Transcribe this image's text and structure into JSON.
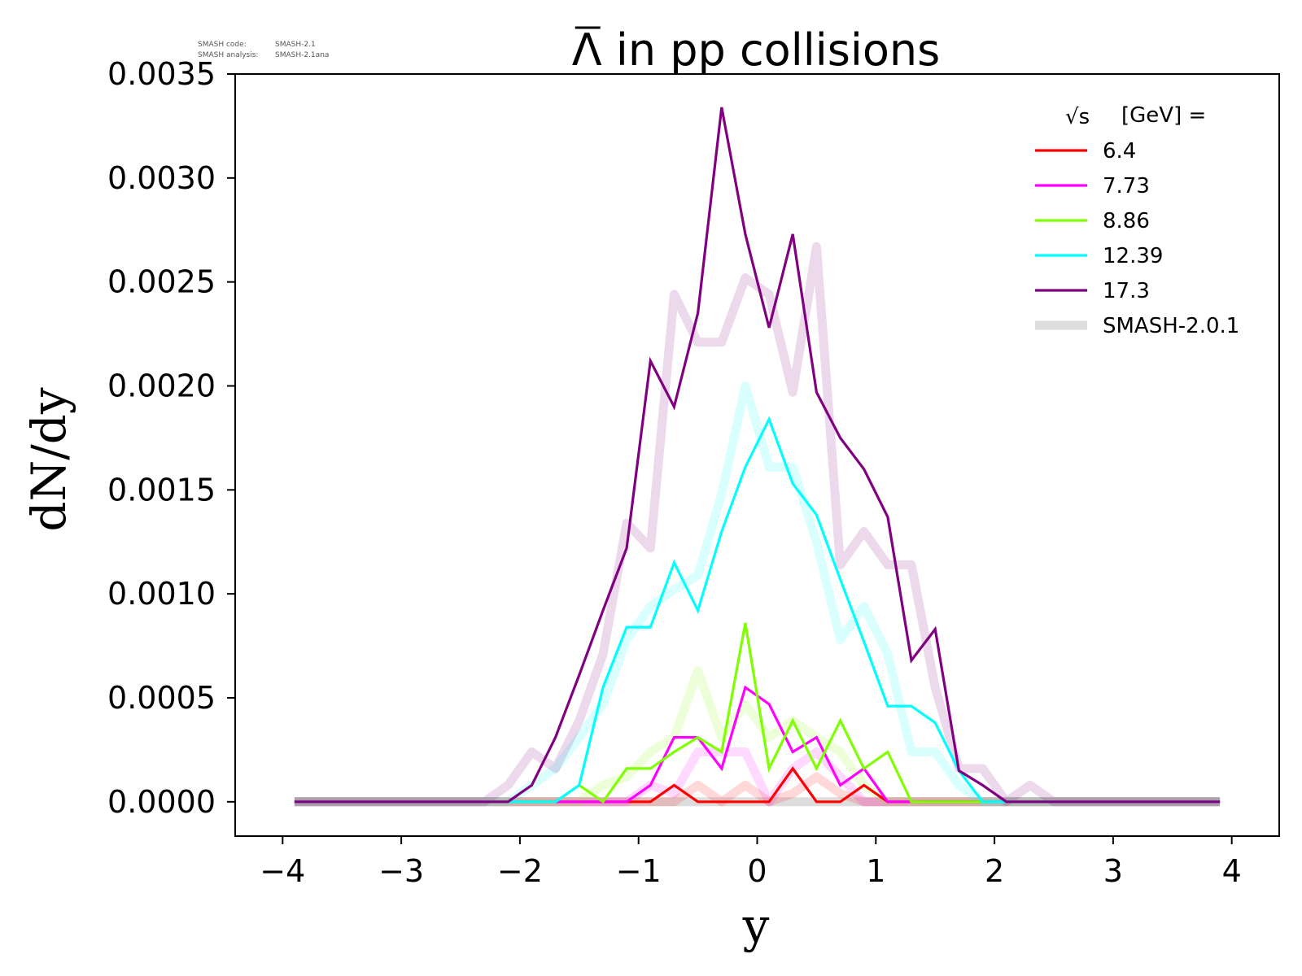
{
  "meta": {
    "code_label": "SMASH code:",
    "code_value": "SMASH-2.1",
    "analysis_label": "SMASH analysis:",
    "analysis_value": "SMASH-2.1ana"
  },
  "chart_data": {
    "type": "line",
    "title": "Λ in pp collisions",
    "title_overbar_char": "Λ",
    "xlabel": "y",
    "ylabel": "dN/dy",
    "xlim": [
      -4.4,
      4.4
    ],
    "ylim": [
      -0.000165,
      0.0035
    ],
    "xticks": [
      -4,
      -3,
      -2,
      -1,
      0,
      1,
      2,
      3,
      4
    ],
    "xtick_labels": [
      "−4",
      "−3",
      "−2",
      "−1",
      "0",
      "1",
      "2",
      "3",
      "4"
    ],
    "yticks": [
      0,
      0.0005,
      0.001,
      0.0015,
      0.002,
      0.0025,
      0.003,
      0.0035
    ],
    "ytick_labels": [
      "0.0000",
      "0.0005",
      "0.0010",
      "0.0015",
      "0.0020",
      "0.0025",
      "0.0030",
      "0.0035"
    ],
    "grid": false,
    "legend": {
      "placement": "top-right",
      "title_prefix": "√s",
      "title_suffix": "[GeV] ="
    },
    "x": [
      -3.9,
      -3.7,
      -3.5,
      -3.3,
      -3.1,
      -2.9,
      -2.7,
      -2.5,
      -2.3,
      -2.1,
      -1.9,
      -1.7,
      -1.5,
      -1.3,
      -1.1,
      -0.9,
      -0.7,
      -0.5,
      -0.3,
      -0.1,
      0.1,
      0.3,
      0.5,
      0.7,
      0.9,
      1.1,
      1.3,
      1.5,
      1.7,
      1.9,
      2.1,
      2.3,
      2.5,
      2.7,
      2.9,
      3.1,
      3.3,
      3.5,
      3.7,
      3.9
    ],
    "series": [
      {
        "name": "6.4",
        "color": "#ff0000",
        "values": [
          0,
          0,
          0,
          0,
          0,
          0,
          0,
          0,
          0,
          0,
          0,
          0,
          0,
          0,
          0,
          0,
          8e-05,
          0,
          0,
          0,
          0,
          0.00016,
          0,
          0,
          8e-05,
          0,
          0,
          0,
          0,
          0,
          0,
          0,
          0,
          0,
          0,
          0,
          0,
          0,
          0,
          0
        ],
        "reference": [
          0,
          0,
          0,
          0,
          0,
          0,
          0,
          0,
          0,
          0,
          0,
          0,
          0,
          0,
          0,
          0,
          0,
          8e-05,
          0,
          8e-05,
          0,
          4e-05,
          0.00012,
          4e-05,
          0,
          0,
          0,
          0,
          0,
          0,
          0,
          0,
          0,
          0,
          0,
          0,
          0,
          0,
          0,
          0
        ]
      },
      {
        "name": "7.73",
        "color": "#ff00ff",
        "values": [
          0,
          0,
          0,
          0,
          0,
          0,
          0,
          0,
          0,
          0,
          0,
          0,
          0,
          0,
          0,
          8e-05,
          0.00031,
          0.00031,
          0.00016,
          0.00055,
          0.00047,
          0.00024,
          0.00031,
          8e-05,
          0.00016,
          0,
          0,
          0,
          0,
          0,
          0,
          0,
          0,
          0,
          0,
          0,
          0,
          0,
          0,
          0
        ],
        "reference": [
          0,
          0,
          0,
          0,
          0,
          0,
          0,
          0,
          0,
          0,
          0,
          0,
          0,
          0,
          0,
          8e-05,
          4e-05,
          0.00024,
          0.00024,
          0.00024,
          0,
          0.00016,
          0.00024,
          0.00012,
          0,
          0,
          0,
          0,
          0,
          0,
          0,
          0,
          0,
          0,
          0,
          0,
          0,
          0,
          0,
          0
        ]
      },
      {
        "name": "8.86",
        "color": "#7fff00",
        "values": [
          0,
          0,
          0,
          0,
          0,
          0,
          0,
          0,
          0,
          0,
          0,
          0,
          8e-05,
          0,
          0.00016,
          0.00016,
          0.00024,
          0.00031,
          0.00024,
          0.00086,
          0.00016,
          0.00039,
          0.00016,
          0.00039,
          0.00016,
          0.00024,
          0,
          0,
          0,
          0,
          0,
          0,
          0,
          0,
          0,
          0,
          0,
          0,
          0,
          0
        ],
        "reference": [
          0,
          0,
          0,
          0,
          0,
          0,
          0,
          0,
          0,
          0,
          0,
          0,
          0,
          8e-05,
          0.00012,
          0.00024,
          0.00031,
          0.00063,
          0.00031,
          0.00047,
          0.00031,
          0.00039,
          0.00031,
          0.00024,
          8e-05,
          0,
          0,
          0,
          0,
          0,
          0,
          0,
          0,
          0,
          0,
          0,
          0,
          0,
          0,
          0
        ]
      },
      {
        "name": "12.39",
        "color": "#00ffff",
        "values": [
          0,
          0,
          0,
          0,
          0,
          0,
          0,
          0,
          0,
          0,
          0,
          0,
          8e-05,
          0.00055,
          0.00084,
          0.00084,
          0.00115,
          0.00092,
          0.0013,
          0.00161,
          0.00184,
          0.00153,
          0.00138,
          0.00107,
          0.00077,
          0.00046,
          0.00046,
          0.00038,
          0.00015,
          0,
          0,
          0,
          0,
          0,
          0,
          0,
          0,
          0,
          0,
          0
        ],
        "reference": [
          0,
          0,
          0,
          0,
          0,
          0,
          0,
          0,
          0,
          0,
          8e-05,
          0.00016,
          0.00031,
          0.00047,
          0.00078,
          0.00094,
          0.00102,
          0.00109,
          0.00148,
          0.002,
          0.00161,
          0.00161,
          0.00125,
          0.00078,
          0.00094,
          0.00071,
          0.00024,
          0.00024,
          8e-05,
          0,
          0,
          0,
          0,
          0,
          0,
          0,
          0,
          0,
          0,
          0
        ]
      },
      {
        "name": "17.3",
        "color": "#800080",
        "values": [
          0,
          0,
          0,
          0,
          0,
          0,
          0,
          0,
          0,
          0,
          8e-05,
          0.00031,
          0.00061,
          0.00092,
          0.00122,
          0.00212,
          0.0019,
          0.00235,
          0.00334,
          0.00273,
          0.00228,
          0.00273,
          0.00197,
          0.00175,
          0.0016,
          0.00137,
          0.00068,
          0.00083,
          0.00015,
          8e-05,
          0,
          0,
          0,
          0,
          0,
          0,
          0,
          0,
          0,
          0
        ],
        "reference": [
          0,
          0,
          0,
          0,
          0,
          0,
          0,
          0,
          0,
          8e-05,
          0.00024,
          0.00016,
          0.00039,
          0.00071,
          0.00134,
          0.00122,
          0.00244,
          0.00221,
          0.00221,
          0.00252,
          0.00244,
          0.00197,
          0.00267,
          0.00114,
          0.0013,
          0.00114,
          0.00114,
          0.00055,
          0.00016,
          0.00016,
          0,
          8e-05,
          0,
          0,
          0,
          0,
          0,
          0,
          0,
          0
        ]
      }
    ],
    "reference_series": {
      "name": "SMASH-2.0.1",
      "color": "#dddddd",
      "values": [
        0,
        0,
        0,
        0,
        0,
        0,
        0,
        0,
        0,
        0,
        0,
        0,
        0,
        0,
        0,
        0,
        0,
        0,
        0,
        0,
        0,
        0,
        0,
        0,
        0,
        0,
        0,
        0,
        0,
        0,
        0,
        0,
        0,
        0,
        0,
        0,
        0,
        0,
        0,
        0
      ]
    }
  }
}
